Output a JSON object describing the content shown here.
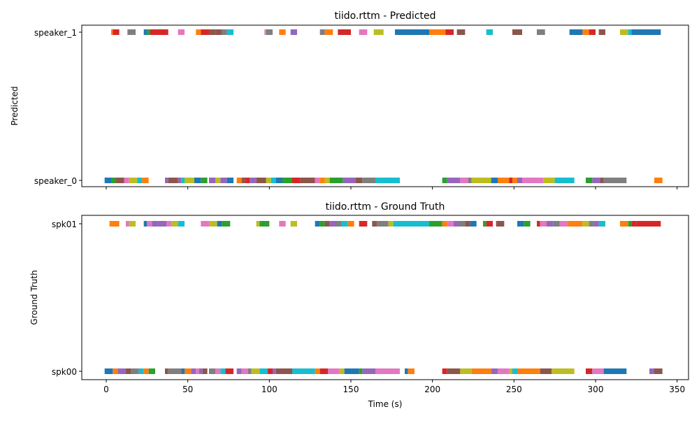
{
  "palette": [
    "#1f77b4",
    "#ff7f0e",
    "#2ca02c",
    "#d62728",
    "#9467bd",
    "#8c564b",
    "#e377c2",
    "#7f7f7f",
    "#bcbd22",
    "#17becf"
  ],
  "chart_data": [
    {
      "type": "timeline",
      "title": "tiido.rttm - Predicted",
      "xlabel": "",
      "ylabel": "Predicted",
      "xlim": [
        -15,
        357
      ],
      "x_ticks": [
        0,
        50,
        100,
        150,
        200,
        250,
        300,
        350
      ],
      "x_tick_labels_visible": false,
      "series": [
        {
          "name": "speaker_1",
          "segments": [
            [
              3,
              4,
              1
            ],
            [
              4,
              8,
              3
            ],
            [
              13,
              18,
              7
            ],
            [
              23,
              25,
              0
            ],
            [
              25,
              27,
              2
            ],
            [
              27,
              38,
              3
            ],
            [
              44,
              48,
              6
            ],
            [
              55,
              58,
              1
            ],
            [
              58,
              63,
              3
            ],
            [
              63,
              67,
              5
            ],
            [
              67,
              71,
              5
            ],
            [
              71,
              74,
              7
            ],
            [
              74,
              78,
              9
            ],
            [
              97,
              98,
              6
            ],
            [
              98,
              102,
              7
            ],
            [
              106,
              110,
              1
            ],
            [
              113,
              117,
              4
            ],
            [
              131,
              134,
              7
            ],
            [
              134,
              139,
              1
            ],
            [
              142,
              150,
              3
            ],
            [
              155,
              160,
              6
            ],
            [
              164,
              170,
              8
            ],
            [
              177,
              198,
              0
            ],
            [
              198,
              208,
              1
            ],
            [
              208,
              213,
              3
            ],
            [
              215,
              220,
              5
            ],
            [
              233,
              237,
              9
            ],
            [
              249,
              255,
              5
            ],
            [
              264,
              269,
              7
            ],
            [
              284,
              292,
              0
            ],
            [
              292,
              296,
              1
            ],
            [
              296,
              300,
              3
            ],
            [
              302,
              306,
              5
            ],
            [
              315,
              320,
              8
            ],
            [
              320,
              322,
              9
            ],
            [
              322,
              340,
              0
            ]
          ]
        },
        {
          "name": "speaker_0",
          "segments": [
            [
              -1,
              3,
              0
            ],
            [
              3,
              6,
              2
            ],
            [
              6,
              11,
              5
            ],
            [
              11,
              14,
              6
            ],
            [
              14,
              19,
              8
            ],
            [
              19,
              22,
              9
            ],
            [
              22,
              26,
              1
            ],
            [
              36,
              38,
              4
            ],
            [
              38,
              44,
              5
            ],
            [
              44,
              46,
              4
            ],
            [
              46,
              48,
              9
            ],
            [
              48,
              51,
              8
            ],
            [
              51,
              54,
              8
            ],
            [
              54,
              58,
              0
            ],
            [
              58,
              62,
              2
            ],
            [
              63,
              67,
              4
            ],
            [
              67,
              70,
              8
            ],
            [
              70,
              74,
              4
            ],
            [
              74,
              78,
              0
            ],
            [
              80,
              83,
              1
            ],
            [
              83,
              85,
              5
            ],
            [
              85,
              88,
              3
            ],
            [
              88,
              92,
              4
            ],
            [
              92,
              98,
              5
            ],
            [
              98,
              101,
              8
            ],
            [
              101,
              104,
              9
            ],
            [
              104,
              108,
              0
            ],
            [
              108,
              114,
              2
            ],
            [
              114,
              119,
              3
            ],
            [
              119,
              128,
              5
            ],
            [
              128,
              131,
              6
            ],
            [
              131,
              134,
              1
            ],
            [
              134,
              137,
              8
            ],
            [
              137,
              145,
              2
            ],
            [
              145,
              153,
              4
            ],
            [
              153,
              157,
              5
            ],
            [
              157,
              165,
              7
            ],
            [
              165,
              180,
              9
            ],
            [
              206,
              209,
              2
            ],
            [
              209,
              217,
              4
            ],
            [
              217,
              222,
              6
            ],
            [
              222,
              224,
              7
            ],
            [
              224,
              236,
              8
            ],
            [
              236,
              240,
              0
            ],
            [
              240,
              247,
              1
            ],
            [
              247,
              249,
              3
            ],
            [
              249,
              252,
              1
            ],
            [
              252,
              255,
              4
            ],
            [
              255,
              268,
              6
            ],
            [
              268,
              275,
              8
            ],
            [
              275,
              287,
              9
            ],
            [
              294,
              298,
              2
            ],
            [
              298,
              303,
              4
            ],
            [
              303,
              305,
              5
            ],
            [
              305,
              319,
              7
            ],
            [
              336,
              341,
              1
            ]
          ]
        }
      ]
    },
    {
      "type": "timeline",
      "title": "tiido.rttm - Ground Truth",
      "xlabel": "Time (s)",
      "ylabel": "Ground Truth",
      "xlim": [
        -15,
        357
      ],
      "x_ticks": [
        0,
        50,
        100,
        150,
        200,
        250,
        300,
        350
      ],
      "x_tick_labels_visible": true,
      "series": [
        {
          "name": "spk01",
          "segments": [
            [
              2,
              8,
              1
            ],
            [
              12,
              14,
              6
            ],
            [
              14,
              18,
              8
            ],
            [
              23,
              25,
              0
            ],
            [
              25,
              28,
              6
            ],
            [
              28,
              32,
              4
            ],
            [
              32,
              37,
              4
            ],
            [
              37,
              40,
              6
            ],
            [
              40,
              44,
              8
            ],
            [
              44,
              48,
              9
            ],
            [
              58,
              63,
              6
            ],
            [
              63,
              68,
              8
            ],
            [
              68,
              71,
              0
            ],
            [
              71,
              76,
              2
            ],
            [
              92,
              94,
              8
            ],
            [
              94,
              96,
              2
            ],
            [
              96,
              100,
              2
            ],
            [
              106,
              110,
              6
            ],
            [
              113,
              117,
              8
            ],
            [
              128,
              131,
              0
            ],
            [
              131,
              134,
              2
            ],
            [
              134,
              137,
              5
            ],
            [
              137,
              141,
              4
            ],
            [
              141,
              144,
              7
            ],
            [
              144,
              148,
              9
            ],
            [
              148,
              152,
              1
            ],
            [
              155,
              160,
              3
            ],
            [
              163,
              166,
              5
            ],
            [
              166,
              173,
              7
            ],
            [
              173,
              176,
              8
            ],
            [
              176,
              198,
              9
            ],
            [
              198,
              206,
              2
            ],
            [
              206,
              209,
              1
            ],
            [
              209,
              213,
              6
            ],
            [
              213,
              216,
              4
            ],
            [
              216,
              220,
              7
            ],
            [
              220,
              223,
              5
            ],
            [
              223,
              227,
              0
            ],
            [
              231,
              233,
              2
            ],
            [
              233,
              237,
              3
            ],
            [
              239,
              244,
              5
            ],
            [
              252,
              256,
              0
            ],
            [
              256,
              260,
              2
            ],
            [
              264,
              266,
              3
            ],
            [
              266,
              270,
              6
            ],
            [
              270,
              274,
              4
            ],
            [
              274,
              278,
              7
            ],
            [
              278,
              283,
              6
            ],
            [
              283,
              292,
              1
            ],
            [
              292,
              296,
              8
            ],
            [
              296,
              299,
              7
            ],
            [
              299,
              302,
              4
            ],
            [
              302,
              306,
              9
            ],
            [
              315,
              320,
              1
            ],
            [
              320,
              322,
              2
            ],
            [
              322,
              325,
              3
            ],
            [
              325,
              340,
              3
            ]
          ]
        },
        {
          "name": "spk00",
          "segments": [
            [
              -1,
              4,
              0
            ],
            [
              4,
              7,
              1
            ],
            [
              7,
              12,
              4
            ],
            [
              12,
              15,
              5
            ],
            [
              15,
              20,
              7
            ],
            [
              20,
              23,
              9
            ],
            [
              23,
              26,
              1
            ],
            [
              26,
              30,
              2
            ],
            [
              36,
              38,
              5
            ],
            [
              38,
              46,
              7
            ],
            [
              46,
              48,
              0
            ],
            [
              48,
              52,
              1
            ],
            [
              52,
              55,
              4
            ],
            [
              55,
              57,
              6
            ],
            [
              57,
              59,
              4
            ],
            [
              59,
              62,
              5
            ],
            [
              63,
              67,
              7
            ],
            [
              67,
              70,
              6
            ],
            [
              70,
              73,
              9
            ],
            [
              73,
              78,
              3
            ],
            [
              80,
              83,
              4
            ],
            [
              83,
              87,
              6
            ],
            [
              87,
              89,
              7
            ],
            [
              89,
              94,
              8
            ],
            [
              94,
              99,
              9
            ],
            [
              99,
              102,
              3
            ],
            [
              102,
              104,
              4
            ],
            [
              104,
              114,
              5
            ],
            [
              114,
              128,
              9
            ],
            [
              128,
              131,
              1
            ],
            [
              131,
              136,
              3
            ],
            [
              136,
              143,
              6
            ],
            [
              143,
              146,
              8
            ],
            [
              146,
              155,
              0
            ],
            [
              155,
              157,
              2
            ],
            [
              157,
              165,
              4
            ],
            [
              165,
              180,
              6
            ],
            [
              183,
              185,
              0
            ],
            [
              185,
              189,
              1
            ],
            [
              206,
              209,
              3
            ],
            [
              209,
              217,
              5
            ],
            [
              217,
              224,
              8
            ],
            [
              224,
              236,
              1
            ],
            [
              236,
              240,
              4
            ],
            [
              240,
              247,
              6
            ],
            [
              247,
              249,
              8
            ],
            [
              249,
              252,
              9
            ],
            [
              252,
              266,
              1
            ],
            [
              266,
              273,
              5
            ],
            [
              273,
              287,
              8
            ],
            [
              294,
              298,
              3
            ],
            [
              298,
              305,
              6
            ],
            [
              305,
              319,
              0
            ],
            [
              333,
              336,
              4
            ],
            [
              336,
              341,
              5
            ]
          ]
        }
      ]
    }
  ]
}
